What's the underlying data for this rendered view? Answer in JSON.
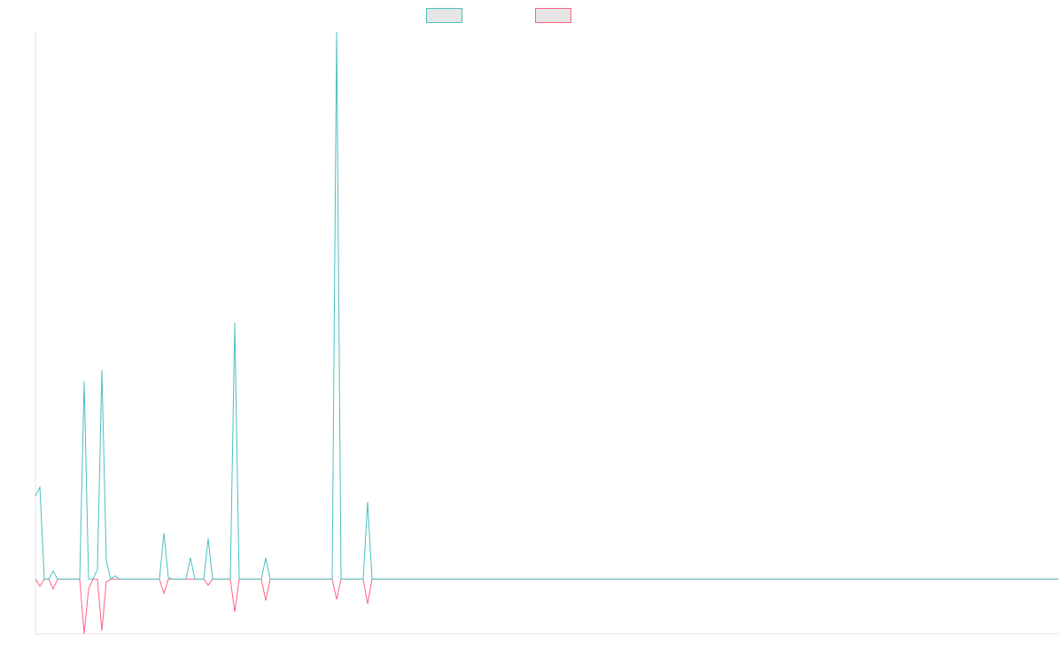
{
  "chart_data": {
    "type": "line",
    "x": [
      0,
      1,
      2,
      3,
      4,
      5,
      6,
      7,
      8,
      9,
      10,
      11,
      12,
      13,
      14,
      15,
      16,
      17,
      18,
      19,
      28,
      29,
      30,
      31,
      34,
      35,
      36,
      38,
      39,
      40,
      44,
      45,
      46,
      51,
      52,
      53,
      67,
      68,
      69,
      74,
      75,
      76,
      231
    ],
    "xlim": [
      0,
      231
    ],
    "ylim": [
      -10,
      100
    ],
    "series": [
      {
        "color": "#ff6384",
        "values": [
          0,
          -1.3,
          0,
          0,
          -1.8,
          0,
          0,
          0,
          0,
          0,
          0,
          -10,
          -1.8,
          0,
          0,
          -9.4,
          -0.5,
          0,
          0,
          0,
          0,
          -2.6,
          0,
          0,
          0,
          0,
          0,
          0,
          -1.1,
          0,
          0,
          -6,
          0,
          0,
          -3.9,
          0,
          0,
          -3.7,
          0,
          0,
          -4.5,
          0,
          0
        ]
      },
      {
        "color": "#4bc0c0",
        "values": [
          15.2,
          16.8,
          0,
          0,
          1.5,
          0,
          0,
          0,
          0,
          0,
          0,
          36.2,
          0,
          0,
          1.8,
          38.2,
          3.4,
          0,
          0.6,
          0,
          0,
          8.4,
          0.3,
          0,
          0,
          3.9,
          0,
          0,
          7.4,
          0,
          0,
          46.8,
          0,
          0,
          3.9,
          0,
          0,
          100,
          0,
          0,
          14.1,
          0,
          0
        ]
      }
    ]
  }
}
